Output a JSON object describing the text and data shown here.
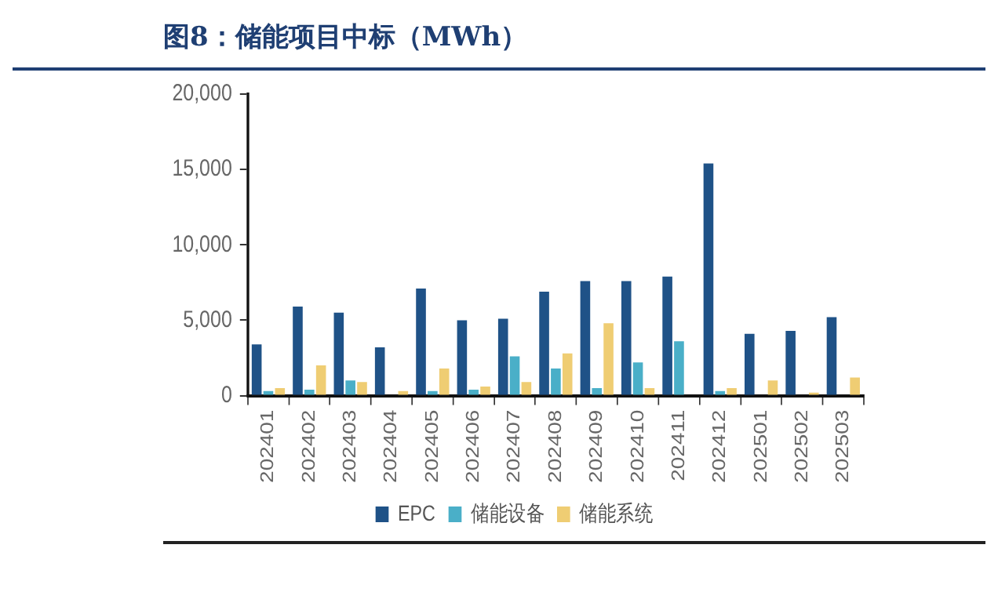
{
  "chart_data": {
    "type": "bar",
    "title": "图8：储能项目中标（MWh）",
    "categories": [
      "202401",
      "202402",
      "202403",
      "202404",
      "202405",
      "202406",
      "202407",
      "202408",
      "202409",
      "202410",
      "202411",
      "202412",
      "202501",
      "202502",
      "202503"
    ],
    "series": [
      {
        "name": "EPC",
        "color": "#1f5287",
        "values": [
          3400,
          5900,
          5500,
          3200,
          7100,
          5000,
          5100,
          6900,
          7600,
          7600,
          7900,
          15400,
          4100,
          4300,
          5200
        ]
      },
      {
        "name": "储能设备",
        "color": "#4aafc8",
        "values": [
          300,
          400,
          1000,
          0,
          300,
          400,
          2600,
          1800,
          500,
          2200,
          3600,
          300,
          0,
          0,
          0
        ]
      },
      {
        "name": "储能系统",
        "color": "#efcd73",
        "values": [
          500,
          2000,
          900,
          300,
          1800,
          600,
          900,
          2800,
          4800,
          500,
          0,
          500,
          1000,
          200,
          1200
        ]
      }
    ],
    "ylim": [
      0,
      20000
    ],
    "yticks": [
      0,
      {
        "value": 5000,
        "label": "5,000"
      },
      {
        "value": 10000,
        "label": "10,000"
      },
      {
        "value": 15000,
        "label": "15,000"
      },
      {
        "value": 20000,
        "label": "20,000"
      }
    ],
    "grid": false,
    "legend": "bottom"
  }
}
